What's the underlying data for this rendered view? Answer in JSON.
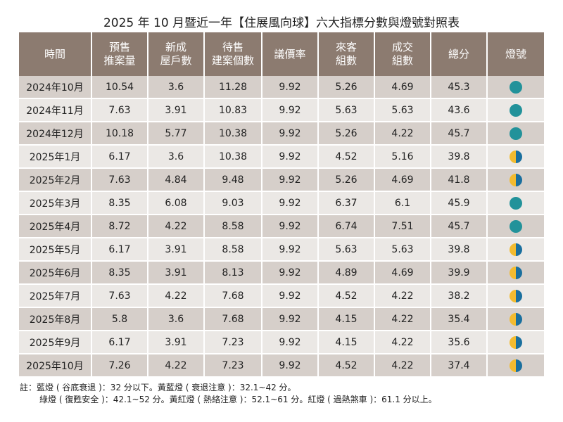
{
  "title": "2025 年 10 月暨近一年【住展風向球】六大指標分數與燈號對照表",
  "headers": [
    "時間",
    "預售\n推案量",
    "新成\n屋戶數",
    "待售\n建案個數",
    "議價率",
    "來客\n組數",
    "成交\n組數",
    "總分",
    "燈號"
  ],
  "colors": {
    "header": "#8c7b70",
    "teal": "#22929a",
    "yellow": "#f2bb30",
    "blue": "#1a6f9e"
  },
  "rows": [
    [
      "2024年10月",
      "10.54",
      "3.6",
      "11.28",
      "9.92",
      "5.26",
      "4.69",
      "45.3",
      "teal"
    ],
    [
      "2024年11月",
      "7.63",
      "3.91",
      "10.83",
      "9.92",
      "5.63",
      "5.63",
      "43.6",
      "teal"
    ],
    [
      "2024年12月",
      "10.18",
      "5.77",
      "10.38",
      "9.92",
      "5.26",
      "4.22",
      "45.7",
      "teal"
    ],
    [
      "2025年1月",
      "6.17",
      "3.6",
      "10.38",
      "9.92",
      "4.52",
      "5.16",
      "39.8",
      "yellow-blue"
    ],
    [
      "2025年2月",
      "7.63",
      "4.84",
      "9.48",
      "9.92",
      "5.26",
      "4.69",
      "41.8",
      "yellow-blue"
    ],
    [
      "2025年3月",
      "8.35",
      "6.08",
      "9.03",
      "9.92",
      "6.37",
      "6.1",
      "45.9",
      "teal"
    ],
    [
      "2025年4月",
      "8.72",
      "4.22",
      "8.58",
      "9.92",
      "6.74",
      "7.51",
      "45.7",
      "teal"
    ],
    [
      "2025年5月",
      "6.17",
      "3.91",
      "8.58",
      "9.92",
      "5.63",
      "5.63",
      "39.8",
      "yellow-blue"
    ],
    [
      "2025年6月",
      "8.35",
      "3.91",
      "8.13",
      "9.92",
      "4.89",
      "4.69",
      "39.9",
      "yellow-blue"
    ],
    [
      "2025年7月",
      "7.63",
      "4.22",
      "7.68",
      "9.92",
      "4.52",
      "4.22",
      "38.2",
      "yellow-blue"
    ],
    [
      "2025年8月",
      "5.8",
      "3.6",
      "7.68",
      "9.92",
      "4.15",
      "4.22",
      "35.4",
      "yellow-blue"
    ],
    [
      "2025年9月",
      "6.17",
      "3.91",
      "7.23",
      "9.92",
      "4.15",
      "4.22",
      "35.6",
      "yellow-blue"
    ],
    [
      "2025年10月",
      "7.26",
      "4.22",
      "7.23",
      "9.92",
      "4.52",
      "4.22",
      "37.4",
      "yellow-blue"
    ]
  ],
  "notes": [
    "註：藍燈 ( 谷底衰退 )：32 分以下。黃藍燈 ( 衰退注意 )：32.1~42 分。",
    "綠燈 ( 復甦安全 )：42.1~52 分。黃紅燈 ( 熱絡注意 )：52.1~61 分。紅燈 ( 過熱煞車 )：61.1 分以上。"
  ]
}
